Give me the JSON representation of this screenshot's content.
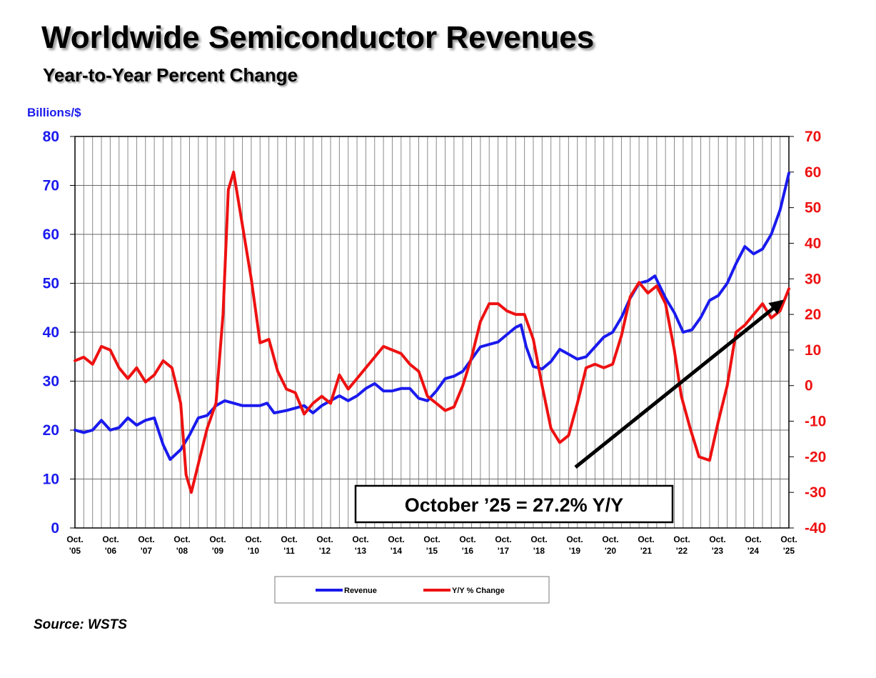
{
  "header": {
    "title": "Worldwide Semiconductor Revenues",
    "subtitle": "Year-to-Year Percent Change"
  },
  "source": "Source: WSTS",
  "chart_data": {
    "type": "line",
    "title": "Worldwide Semiconductor Revenues",
    "subtitle": "Year-to-Year Percent Change",
    "ylabel_left": "Billions/$",
    "ylim_left": [
      0,
      80
    ],
    "ylim_right": [
      -40,
      70
    ],
    "yticks_left": [
      "0",
      "10",
      "20",
      "30",
      "40",
      "50",
      "60",
      "70",
      "80"
    ],
    "yticks_right": [
      "-40",
      "-30",
      "-20",
      "-10",
      "0",
      "10",
      "20",
      "30",
      "40",
      "50",
      "60",
      "70"
    ],
    "x_tick_labels": [
      [
        "Oct.",
        "'05"
      ],
      [
        "Oct.",
        "'06"
      ],
      [
        "Oct.",
        "'07"
      ],
      [
        "Oct.",
        "'08"
      ],
      [
        "Oct.",
        "'09"
      ],
      [
        "Oct.",
        "'10"
      ],
      [
        "Oct.",
        "'11"
      ],
      [
        "Oct.",
        "'12"
      ],
      [
        "Oct.",
        "'13"
      ],
      [
        "Oct.",
        "'14"
      ],
      [
        "Oct.",
        "'15"
      ],
      [
        "Oct.",
        "'16"
      ],
      [
        "Oct.",
        "'17"
      ],
      [
        "Oct.",
        "'18"
      ],
      [
        "Oct.",
        "'19"
      ],
      [
        "Oct.",
        "'20"
      ],
      [
        "Oct.",
        "'21"
      ],
      [
        "Oct.",
        "'22"
      ],
      [
        "Oct.",
        "'23"
      ],
      [
        "Oct.",
        "'24"
      ],
      [
        "Oct.",
        "'25"
      ]
    ],
    "grid": true,
    "legend": {
      "placement": "bottom-center"
    },
    "annotation": "October ’25 = 27.2% Y/Y",
    "series": [
      {
        "name": "Revenue",
        "axis": "left",
        "color": "#1a1aee",
        "points": [
          [
            2005.75,
            20
          ],
          [
            2006.0,
            19.5
          ],
          [
            2006.25,
            20
          ],
          [
            2006.5,
            22
          ],
          [
            2006.75,
            20
          ],
          [
            2007.0,
            20.5
          ],
          [
            2007.25,
            22.5
          ],
          [
            2007.5,
            21
          ],
          [
            2007.75,
            22
          ],
          [
            2008.0,
            22.5
          ],
          [
            2008.25,
            17
          ],
          [
            2008.45,
            14
          ],
          [
            2008.75,
            16
          ],
          [
            2009.0,
            19
          ],
          [
            2009.25,
            22.5
          ],
          [
            2009.5,
            23
          ],
          [
            2009.75,
            25
          ],
          [
            2010.0,
            26
          ],
          [
            2010.25,
            25.5
          ],
          [
            2010.5,
            25
          ],
          [
            2010.75,
            25
          ],
          [
            2011.0,
            25
          ],
          [
            2011.2,
            25.5
          ],
          [
            2011.4,
            23.5
          ],
          [
            2011.75,
            24
          ],
          [
            2012.0,
            24.5
          ],
          [
            2012.25,
            25
          ],
          [
            2012.5,
            23.5
          ],
          [
            2012.75,
            25
          ],
          [
            2013.0,
            26
          ],
          [
            2013.25,
            27
          ],
          [
            2013.5,
            26
          ],
          [
            2013.75,
            27
          ],
          [
            2014.0,
            28.5
          ],
          [
            2014.25,
            29.5
          ],
          [
            2014.5,
            28
          ],
          [
            2014.75,
            28
          ],
          [
            2015.0,
            28.5
          ],
          [
            2015.25,
            28.5
          ],
          [
            2015.5,
            26.5
          ],
          [
            2015.75,
            26
          ],
          [
            2016.0,
            28
          ],
          [
            2016.25,
            30.5
          ],
          [
            2016.5,
            31
          ],
          [
            2016.75,
            32
          ],
          [
            2017.0,
            34.5
          ],
          [
            2017.25,
            37
          ],
          [
            2017.5,
            37.5
          ],
          [
            2017.75,
            38
          ],
          [
            2018.0,
            39.5
          ],
          [
            2018.25,
            41
          ],
          [
            2018.4,
            41.5
          ],
          [
            2018.55,
            37
          ],
          [
            2018.75,
            33
          ],
          [
            2019.0,
            32.5
          ],
          [
            2019.25,
            34
          ],
          [
            2019.5,
            36.5
          ],
          [
            2019.75,
            35.5
          ],
          [
            2020.0,
            34.5
          ],
          [
            2020.25,
            35
          ],
          [
            2020.5,
            37
          ],
          [
            2020.75,
            39
          ],
          [
            2021.0,
            40
          ],
          [
            2021.25,
            43
          ],
          [
            2021.5,
            47
          ],
          [
            2021.75,
            50
          ],
          [
            2022.0,
            50.5
          ],
          [
            2022.2,
            51.5
          ],
          [
            2022.5,
            47
          ],
          [
            2022.75,
            44
          ],
          [
            2023.0,
            40
          ],
          [
            2023.25,
            40.5
          ],
          [
            2023.5,
            43
          ],
          [
            2023.75,
            46.5
          ],
          [
            2024.0,
            47.5
          ],
          [
            2024.25,
            50
          ],
          [
            2024.5,
            54
          ],
          [
            2024.75,
            57.5
          ],
          [
            2025.0,
            56
          ],
          [
            2025.25,
            57
          ],
          [
            2025.5,
            60
          ],
          [
            2025.75,
            65
          ],
          [
            2026.0,
            72.5
          ]
        ]
      },
      {
        "name": "Y/Y % Change",
        "axis": "right",
        "color": "#ee1111",
        "points": [
          [
            2005.75,
            7
          ],
          [
            2006.0,
            8
          ],
          [
            2006.25,
            6
          ],
          [
            2006.5,
            11
          ],
          [
            2006.75,
            10
          ],
          [
            2007.0,
            5
          ],
          [
            2007.25,
            2
          ],
          [
            2007.5,
            5
          ],
          [
            2007.75,
            1
          ],
          [
            2008.0,
            3
          ],
          [
            2008.25,
            7
          ],
          [
            2008.5,
            5
          ],
          [
            2008.75,
            -5
          ],
          [
            2008.9,
            -25
          ],
          [
            2009.05,
            -30
          ],
          [
            2009.25,
            -22
          ],
          [
            2009.5,
            -12
          ],
          [
            2009.75,
            -5
          ],
          [
            2009.95,
            20
          ],
          [
            2010.1,
            55
          ],
          [
            2010.25,
            60
          ],
          [
            2010.5,
            45
          ],
          [
            2010.75,
            30
          ],
          [
            2011.0,
            12
          ],
          [
            2011.25,
            13
          ],
          [
            2011.5,
            4
          ],
          [
            2011.75,
            -1
          ],
          [
            2012.0,
            -2
          ],
          [
            2012.25,
            -8
          ],
          [
            2012.5,
            -5
          ],
          [
            2012.75,
            -3
          ],
          [
            2013.0,
            -5
          ],
          [
            2013.25,
            3
          ],
          [
            2013.5,
            -1
          ],
          [
            2013.75,
            2
          ],
          [
            2014.0,
            5
          ],
          [
            2014.25,
            8
          ],
          [
            2014.5,
            11
          ],
          [
            2014.75,
            10
          ],
          [
            2015.0,
            9
          ],
          [
            2015.25,
            6
          ],
          [
            2015.5,
            4
          ],
          [
            2015.75,
            -3
          ],
          [
            2016.0,
            -5
          ],
          [
            2016.25,
            -7
          ],
          [
            2016.5,
            -6
          ],
          [
            2016.75,
            0
          ],
          [
            2017.0,
            8
          ],
          [
            2017.25,
            18
          ],
          [
            2017.5,
            23
          ],
          [
            2017.75,
            23
          ],
          [
            2018.0,
            21
          ],
          [
            2018.25,
            20
          ],
          [
            2018.5,
            20
          ],
          [
            2018.75,
            13
          ],
          [
            2019.0,
            0
          ],
          [
            2019.25,
            -12
          ],
          [
            2019.5,
            -16
          ],
          [
            2019.75,
            -14
          ],
          [
            2020.0,
            -5
          ],
          [
            2020.25,
            5
          ],
          [
            2020.5,
            6
          ],
          [
            2020.75,
            5
          ],
          [
            2021.0,
            6
          ],
          [
            2021.25,
            14
          ],
          [
            2021.5,
            25
          ],
          [
            2021.75,
            29
          ],
          [
            2022.0,
            26
          ],
          [
            2022.25,
            28
          ],
          [
            2022.5,
            23
          ],
          [
            2022.75,
            10
          ],
          [
            2022.95,
            -3
          ],
          [
            2023.2,
            -12
          ],
          [
            2023.45,
            -20
          ],
          [
            2023.75,
            -21
          ],
          [
            2024.0,
            -10
          ],
          [
            2024.25,
            0
          ],
          [
            2024.5,
            15
          ],
          [
            2024.75,
            17
          ],
          [
            2025.0,
            20
          ],
          [
            2025.25,
            23
          ],
          [
            2025.5,
            19
          ],
          [
            2025.75,
            21
          ],
          [
            2026.0,
            27.2
          ]
        ]
      }
    ]
  }
}
